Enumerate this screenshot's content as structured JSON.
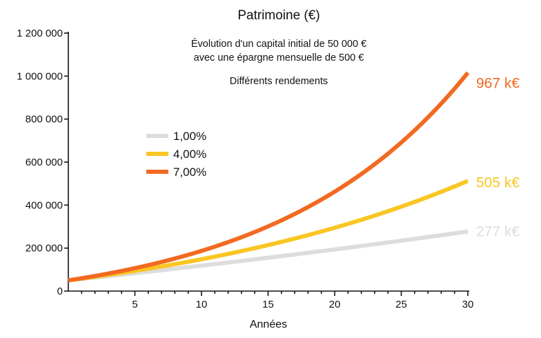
{
  "chart_data": {
    "type": "line",
    "title": "Patrimoine (€)",
    "subtitle_lines": [
      "Évolution d'un capital initial de 50 000 €",
      "avec une épargne mensuelle de 500 €"
    ],
    "subtitle2": "Différents rendements",
    "xlabel": "Années",
    "ylabel": "",
    "xlim": [
      0,
      30
    ],
    "ylim": [
      0,
      1200000
    ],
    "x_ticks": [
      5,
      10,
      15,
      20,
      25,
      30
    ],
    "y_ticks": [
      0,
      200000,
      400000,
      600000,
      800000,
      1000000,
      1200000
    ],
    "y_tick_labels": [
      "0",
      "200 000",
      "400 000",
      "600 000",
      "800 000",
      "1 000 000",
      "1 200 000"
    ],
    "x_tick_labels": [
      "5",
      "10",
      "15",
      "20",
      "25",
      "30"
    ],
    "initial_capital": 50000,
    "monthly_saving": 500,
    "x": [
      0,
      5,
      10,
      15,
      20,
      25,
      30
    ],
    "series": [
      {
        "name": "1,00%",
        "rate": 0.01,
        "color": "#dddddd",
        "end_label": "277 k€",
        "values": [
          50000,
          83400,
          118500,
          155400,
          194100,
          234700,
          277000
        ]
      },
      {
        "name": "4,00%",
        "rate": 0.04,
        "color": "#f9c623",
        "end_label": "505 k€",
        "values": [
          50000,
          94400,
          149300,
          215700,
          295300,
          390400,
          505000
        ]
      },
      {
        "name": "7,00%",
        "rate": 0.07,
        "color": "#f26a21",
        "end_label": "967 k€",
        "values": [
          50000,
          106700,
          187200,
          297700,
          451400,
          663700,
          967000
        ]
      }
    ],
    "grid": false,
    "legend_position": "upper-left"
  }
}
